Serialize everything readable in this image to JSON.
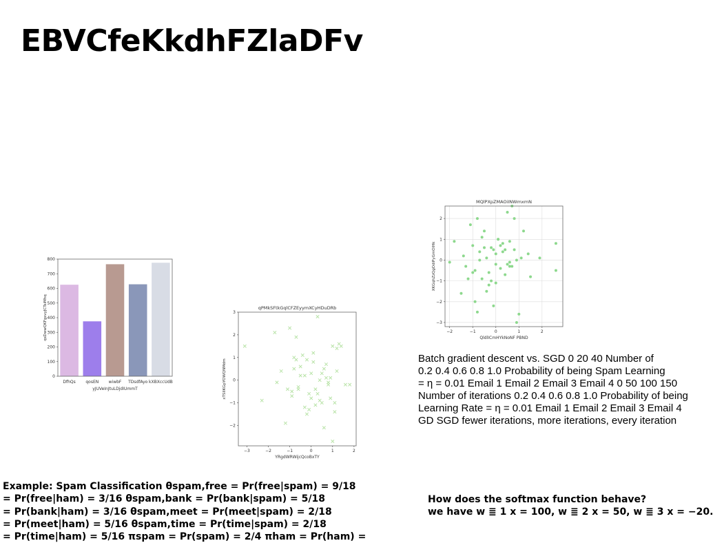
{
  "title": "EBVCfeKkdhFZlaDFv",
  "charts": [
    {
      "type": "bar",
      "title": "",
      "xlabel": "yJUVeInJtuLDjdIUmmT",
      "ylabel": "qsDwwQKFgsvyJCTsiMhq",
      "categories": [
        "DfhQs",
        "qosEN",
        "wiwbF",
        "TDsdfAyo",
        "kXBXccUdB"
      ],
      "values": [
        625,
        375,
        765,
        628,
        775
      ],
      "colors": [
        "#dcb9e3",
        "#9d7eeb",
        "#b89a91",
        "#8a97b9",
        "#d8dce5"
      ],
      "ylim": [
        0,
        800
      ],
      "yticks": [
        0,
        100,
        200,
        300,
        400,
        500,
        600,
        700,
        800
      ],
      "grid": false
    },
    {
      "type": "scatter",
      "title": "qPMkSFtkGqlCFZEyymXCyHDuDRb",
      "xlabel": "YRgdWRWijcQcoBxTY",
      "ylabel": "xTSIIKGpYOWQNMdm",
      "marker": "x",
      "color": "#b9e3a8",
      "xlim": [
        -3.4,
        2.1
      ],
      "ylim": [
        -2.9,
        3.0
      ],
      "xticks": [
        -3,
        -2,
        -1,
        0,
        1,
        2
      ],
      "yticks": [
        -2,
        -1,
        0,
        1,
        2,
        3
      ],
      "grid": false,
      "x": [
        -3.1,
        -2.3,
        -1.7,
        -1.6,
        -1.2,
        -1.0,
        -0.9,
        -0.8,
        -0.7,
        -0.6,
        -0.5,
        -0.4,
        -0.3,
        -0.2,
        -0.1,
        0.0,
        0.1,
        0.2,
        0.3,
        0.4,
        0.5,
        0.6,
        0.7,
        0.8,
        0.9,
        1.0,
        1.1,
        1.2,
        1.3,
        1.4,
        1.6,
        1.8,
        -0.9,
        -0.5,
        -0.2,
        0.1,
        0.4,
        0.7,
        1.0,
        -1.4,
        -0.6,
        0.2,
        0.9,
        -0.8,
        0.0,
        0.6,
        -1.1,
        -0.3,
        0.3,
        1.1,
        -0.7,
        0.5,
        1.2,
        -0.1,
        0.8
      ],
      "y": [
        1.5,
        -0.9,
        2.1,
        -0.1,
        -1.9,
        2.3,
        -0.7,
        0.5,
        1.9,
        -0.3,
        0.2,
        1.1,
        -1.2,
        0.9,
        -0.6,
        0.3,
        1.2,
        -0.4,
        2.8,
        0.0,
        -1.0,
        -2.1,
        0.7,
        -0.2,
        -0.8,
        1.5,
        -1.4,
        0.4,
        1.6,
        1.5,
        -0.2,
        -0.2,
        -0.5,
        0.6,
        -1.5,
        0.8,
        -0.9,
        0.1,
        -2.7,
        0.4,
        -0.4,
        -1.1,
        0.1,
        1.0,
        -0.8,
        0.5,
        -0.4,
        0.2,
        -0.6,
        -1.0,
        0.9,
        0.3,
        1.4,
        -1.3,
        -0.1
      ]
    },
    {
      "type": "scatter",
      "title": "MQlPXpZMAOiINWmxmN",
      "xlabel": "QldlICmHYkNoNF PBND",
      "ylabel": "XKGqhZzQgOdiPyGmOlHk",
      "marker": "o",
      "color": "#8dd88d",
      "xlim": [
        -2.2,
        2.9
      ],
      "ylim": [
        -3.2,
        2.6
      ],
      "xticks": [
        -2,
        -1,
        0,
        1,
        2
      ],
      "yticks": [
        -3,
        -2,
        -1,
        0,
        1,
        2
      ],
      "grid": true,
      "x": [
        -2.0,
        -1.8,
        -1.5,
        -1.3,
        -1.1,
        -1.0,
        -0.9,
        -0.8,
        -0.7,
        -0.6,
        -0.5,
        -0.4,
        -0.3,
        -0.2,
        -0.1,
        0.0,
        0.1,
        0.2,
        0.3,
        0.4,
        0.5,
        0.6,
        0.7,
        0.8,
        0.9,
        1.0,
        1.2,
        1.5,
        1.9,
        2.6,
        -1.2,
        -0.9,
        -0.6,
        -0.3,
        0.0,
        0.3,
        0.6,
        0.9,
        -0.7,
        -0.2,
        0.2,
        0.7,
        1.4,
        -1.0,
        -0.4,
        0.1,
        0.5,
        -0.8,
        0.4,
        1.1,
        -1.4,
        -0.5,
        0.0,
        0.8,
        2.6,
        -0.1,
        0.6
      ],
      "y": [
        -0.1,
        0.9,
        -1.6,
        -0.3,
        1.7,
        0.7,
        -0.5,
        2.0,
        0.4,
        -0.9,
        1.4,
        0.1,
        -1.2,
        0.6,
        -2.2,
        0.3,
        1.0,
        -0.4,
        0.8,
        -0.7,
        2.3,
        -0.1,
        2.6,
        0.5,
        0.0,
        -2.6,
        1.4,
        -0.8,
        0.1,
        0.8,
        -0.9,
        -2.0,
        1.1,
        -0.6,
        -0.2,
        0.4,
        0.9,
        -3.0,
        0.0,
        -1.0,
        0.7,
        -0.3,
        0.3,
        -0.6,
        -1.5,
        1.0,
        -0.2,
        -2.5,
        0.5,
        0.1,
        0.2,
        0.6,
        -1.1,
        2.0,
        -0.5,
        0.5,
        -0.3
      ]
    }
  ],
  "gd_text": [
    "Batch gradient descent vs. SGD 0 20 40 Number of",
    "0.2 0.4 0.6 0.8 1.0 Probability of being Spam Learning",
    "= η = 0.01 Email 1 Email 2 Email 3 Email 4 0 50 100 150",
    "Number of iterations 0.2 0.4 0.6 0.8 1.0 Probability of being",
    "Learning Rate = η = 0.01 Email 1 Email 2 Email 3 Email 4",
    "GD SGD fewer iterations, more iterations, every iteration"
  ],
  "spam_text": [
    "Example: Spam Classification θspam,free = Pr(free|spam) = 9/18",
    "= Pr(free|ham) = 3/16 θspam,bank = Pr(bank|spam) = 5/18",
    "= Pr(bank|ham) = 3/16 θspam,meet = Pr(meet|spam) = 2/18",
    "= Pr(meet|ham) = 5/16 θspam,time = Pr(time|spam) = 2/18",
    "= Pr(time|ham) = 5/16 πspam = Pr(spam) = 2/4 πham = Pr(ham) ="
  ],
  "softmax_text": [
    "How does the softmax function behave?",
    "we have w ≣ 1 x = 100, w ≣ 2 x = 50, w ≣ 3 x = −20."
  ]
}
